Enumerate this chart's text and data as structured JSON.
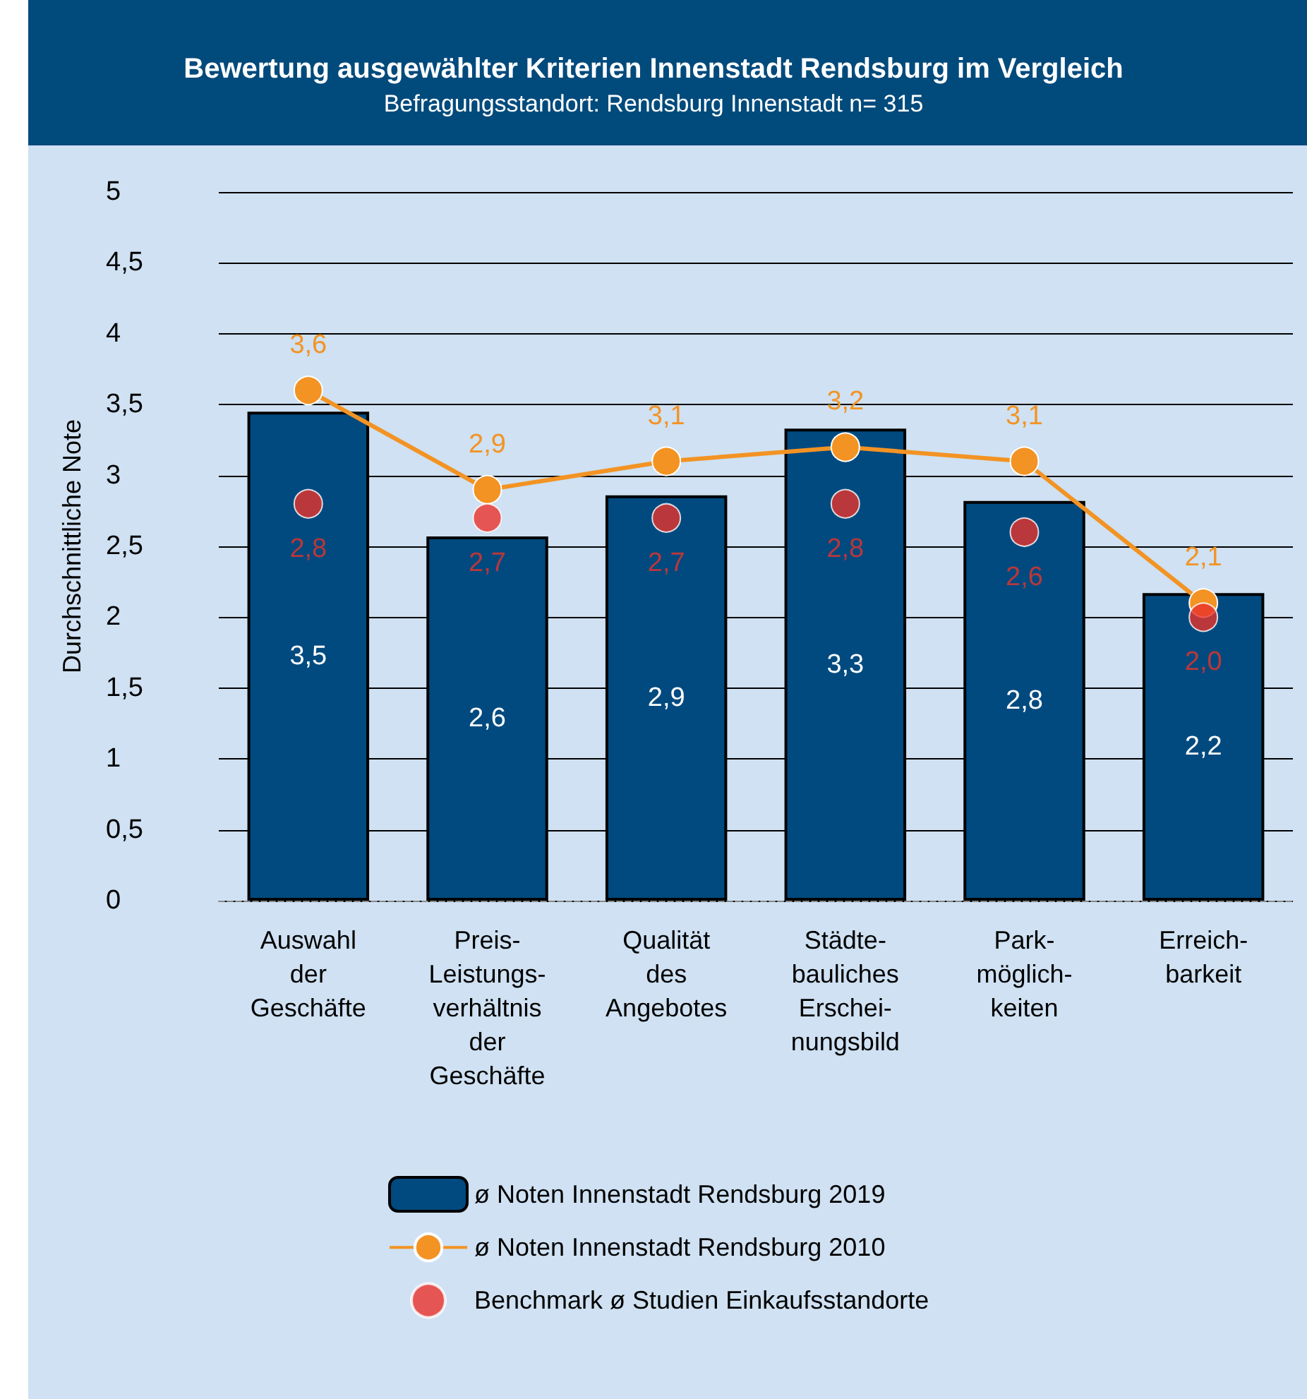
{
  "chart_data": {
    "type": "bar",
    "title": "Bewertung ausgewählter Kriterien Innenstadt Rendsburg im Vergleich",
    "subtitle": "Befragungsstandort: Rendsburg Innenstadt n= 315",
    "ylabel": "Durchschnittliche Note",
    "categories": [
      "Auswahl\nder\nGeschäfte",
      "Preis-\nLeistungs-\nverhältnis\nder\nGeschäfte",
      "Qualität\ndes\nAngebotes",
      "Städte-\nbauliches\nErschei-\nnungsbild",
      "Park-\nmöglich-\nkeiten",
      "Erreich-\nbarkeit"
    ],
    "series": [
      {
        "name": "ø Noten Innenstadt Rendsburg 2019",
        "color": "#004a7f",
        "values": [
          3.45,
          2.57,
          2.86,
          3.33,
          2.82,
          2.17
        ],
        "value_labels": [
          "3,5",
          "2,6",
          "2,9",
          "3,3",
          "2,8",
          "2,2"
        ]
      },
      {
        "name": "ø Noten Innenstadt Rendsburg 2010",
        "type": "line",
        "color": "#f39323",
        "marker": "circle",
        "values": [
          3.6,
          2.9,
          3.1,
          3.2,
          3.1,
          2.1
        ],
        "value_labels": [
          "3,6",
          "2,9",
          "3,1",
          "3,2",
          "3,1",
          "2,1"
        ]
      },
      {
        "name": "Benchmark ø Studien Einkaufsstandorte",
        "type": "scatter",
        "color": "#e8322a",
        "marker": "circle",
        "values": [
          2.8,
          2.7,
          2.7,
          2.8,
          2.6,
          2.0
        ],
        "value_labels": [
          "2,8",
          "2,7",
          "2,7",
          "2,8",
          "2,6",
          "2,0"
        ]
      }
    ],
    "ylim": [
      0,
      5
    ],
    "yticks": [
      0,
      {
        "value": 0.5,
        "label": "0,5"
      },
      1,
      {
        "value": 1.5,
        "label": "1,5"
      },
      2,
      {
        "value": 2.5,
        "label": "2,5"
      },
      3,
      {
        "value": 3.5,
        "label": "3,5"
      },
      4,
      {
        "value": 4.5,
        "label": "4,5"
      },
      5
    ],
    "grid": "y",
    "legend": "bottom"
  }
}
